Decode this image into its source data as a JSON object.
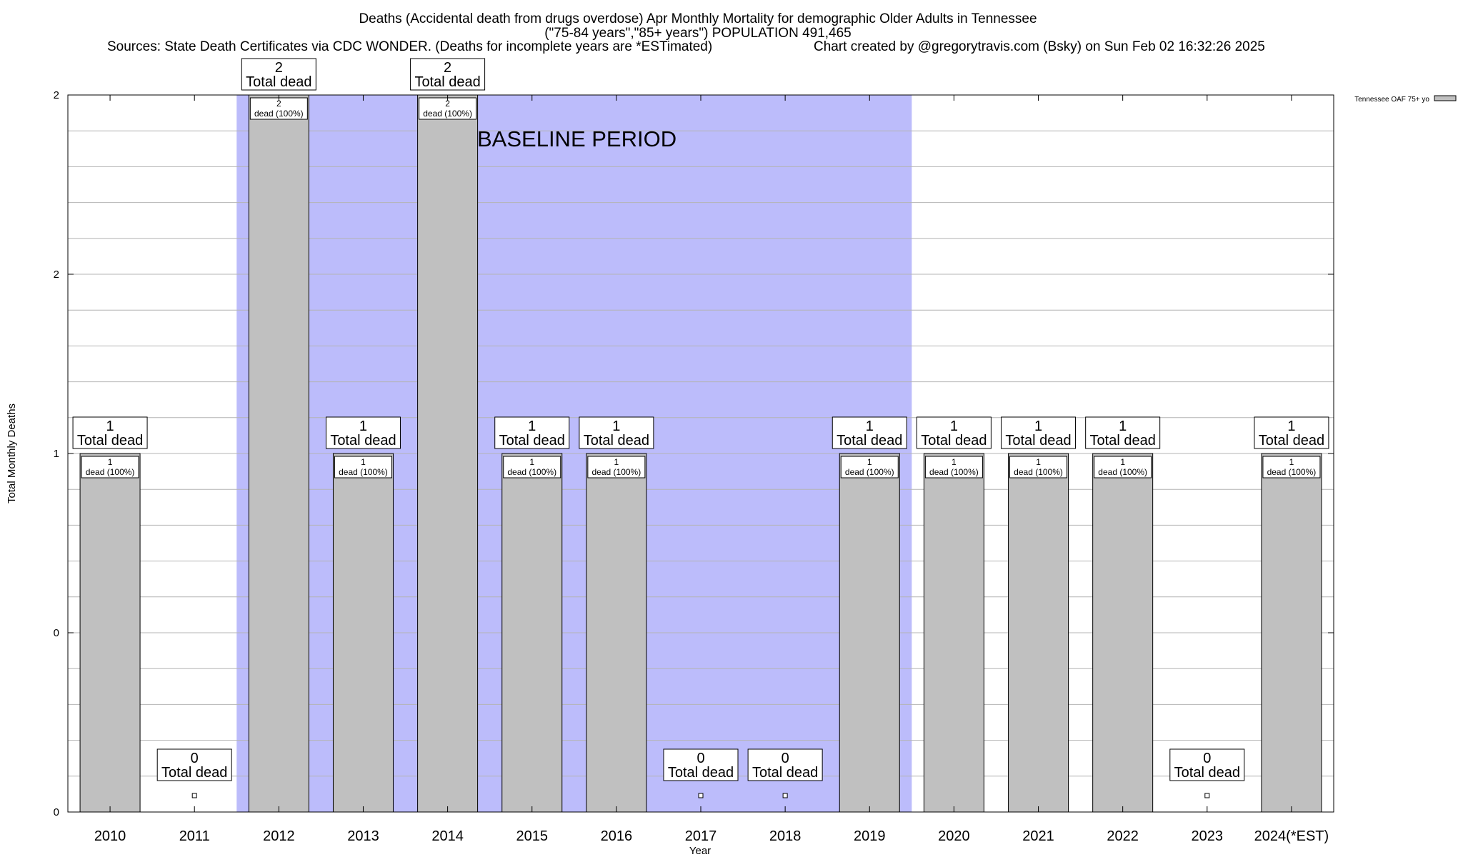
{
  "chart_data": {
    "type": "bar",
    "title_lines": [
      "Deaths (Accidental death from drugs overdose) Apr Monthly Mortality for demographic Older Adults in Tennessee",
      "(\"75-84 years\",\"85+ years\") POPULATION 491,465"
    ],
    "sources": "Sources: State Death Certificates via CDC WONDER. (Deaths for incomplete years are *ESTimated)",
    "credit": "Chart created by @gregorytravis.com (Bsky) on Sun Feb 02 16:32:26 2025",
    "xlabel": "Year",
    "ylabel": "Total Monthly Deaths",
    "categories": [
      "2010",
      "2011",
      "2012",
      "2013",
      "2014",
      "2015",
      "2016",
      "2017",
      "2018",
      "2019",
      "2020",
      "2021",
      "2022",
      "2023",
      "2024(*EST)"
    ],
    "series": [
      {
        "name": "Tennessee OAF 75+ yo",
        "values": [
          1,
          0,
          2,
          1,
          2,
          1,
          1,
          0,
          0,
          1,
          1,
          1,
          1,
          0,
          1
        ]
      }
    ],
    "total_label_suffix": "Total dead",
    "inner_label_suffix": "dead (100%)",
    "y_tick_values": [
      0,
      0.5,
      1,
      1.5,
      2
    ],
    "y_tick_labels": [
      "0",
      "0",
      "1",
      "2",
      "2"
    ],
    "ylim": [
      0,
      2
    ],
    "grid": true,
    "shaded_region": {
      "label": "BASELINE PERIOD",
      "from_category": "2012",
      "to_category": "2019",
      "color": "#bcbcfb"
    },
    "bar_color": "#c0c0c0",
    "legend_position": "top-right"
  }
}
